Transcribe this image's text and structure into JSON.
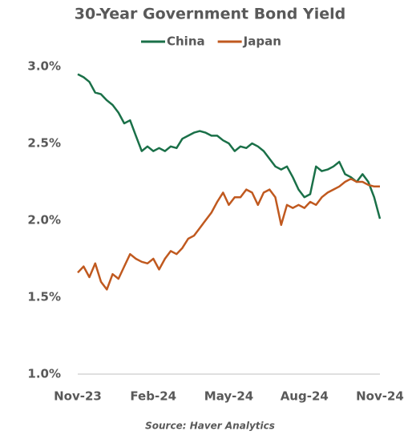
{
  "chart_data": {
    "type": "line",
    "title": "30-Year Government Bond Yield",
    "source": "Source: Haver Analytics",
    "categories": [
      "Nov-23",
      null,
      null,
      null,
      null,
      null,
      null,
      null,
      null,
      null,
      null,
      null,
      null,
      "Feb-24",
      null,
      null,
      null,
      null,
      null,
      null,
      null,
      null,
      null,
      null,
      null,
      null,
      "May-24",
      null,
      null,
      null,
      null,
      null,
      null,
      null,
      null,
      null,
      null,
      null,
      null,
      "Aug-24",
      null,
      null,
      null,
      null,
      null,
      null,
      null,
      null,
      null,
      null,
      null,
      null,
      "Nov-24"
    ],
    "series": [
      {
        "name": "China",
        "color": "#1a7048",
        "values": [
          2.95,
          2.93,
          2.9,
          2.83,
          2.82,
          2.78,
          2.75,
          2.7,
          2.63,
          2.65,
          2.55,
          2.45,
          2.48,
          2.45,
          2.47,
          2.45,
          2.48,
          2.47,
          2.53,
          2.55,
          2.57,
          2.58,
          2.57,
          2.55,
          2.55,
          2.52,
          2.5,
          2.45,
          2.48,
          2.47,
          2.5,
          2.48,
          2.45,
          2.4,
          2.35,
          2.33,
          2.35,
          2.28,
          2.2,
          2.15,
          2.17,
          2.35,
          2.32,
          2.33,
          2.35,
          2.38,
          2.3,
          2.28,
          2.25,
          2.3,
          2.25,
          2.15,
          2.01
        ]
      },
      {
        "name": "Japan",
        "color": "#c0591f",
        "values": [
          1.66,
          1.7,
          1.63,
          1.72,
          1.6,
          1.55,
          1.65,
          1.62,
          1.7,
          1.78,
          1.75,
          1.73,
          1.72,
          1.75,
          1.68,
          1.75,
          1.8,
          1.78,
          1.82,
          1.88,
          1.9,
          1.95,
          2.0,
          2.05,
          2.12,
          2.18,
          2.1,
          2.15,
          2.15,
          2.2,
          2.18,
          2.1,
          2.18,
          2.2,
          2.15,
          1.97,
          2.1,
          2.08,
          2.1,
          2.08,
          2.12,
          2.1,
          2.15,
          2.18,
          2.2,
          2.22,
          2.25,
          2.27,
          2.25,
          2.25,
          2.23,
          2.22,
          2.22
        ]
      }
    ],
    "ylim": [
      1.0,
      3.0
    ],
    "yticks": [
      {
        "value": 1.0,
        "label": "1.0%"
      },
      {
        "value": 1.5,
        "label": "1.5%"
      },
      {
        "value": 2.0,
        "label": "2.0%"
      },
      {
        "value": 2.5,
        "label": "2.5%"
      },
      {
        "value": 3.0,
        "label": "3.0%"
      }
    ],
    "legend": "top"
  }
}
